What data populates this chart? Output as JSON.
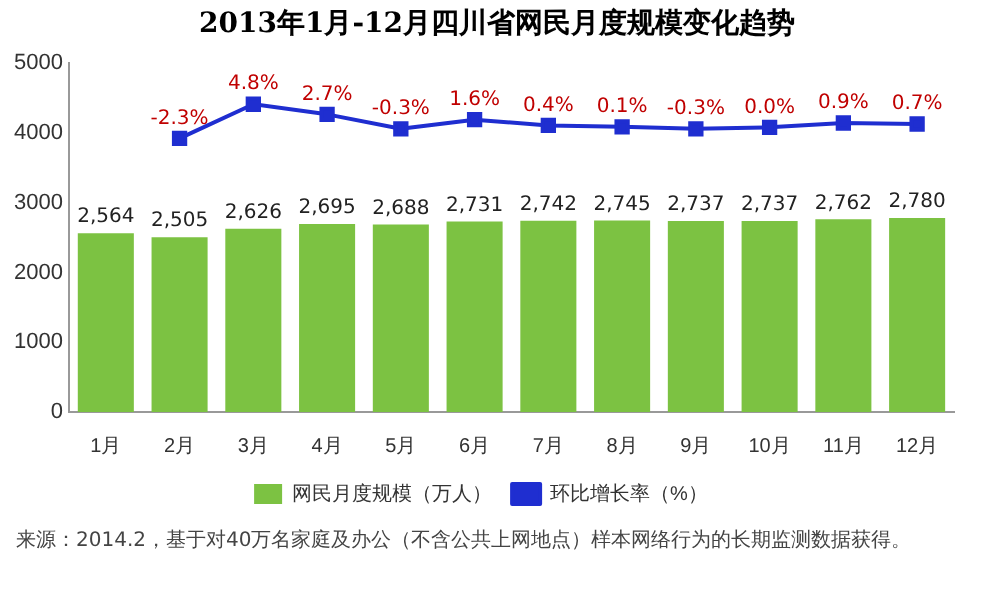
{
  "chart_data": {
    "type": "bar",
    "title": "2013年1月-12月四川省网民月度规模变化趋势",
    "categories": [
      "1月",
      "2月",
      "3月",
      "4月",
      "5月",
      "6月",
      "7月",
      "8月",
      "9月",
      "10月",
      "11月",
      "12月"
    ],
    "series": [
      {
        "name": "网民月度规模（万人）",
        "color": "#7cc242",
        "values": [
          2564,
          2505,
          2626,
          2695,
          2688,
          2731,
          2742,
          2745,
          2737,
          2737,
          2762,
          2780
        ],
        "value_labels": [
          "2,564",
          "2,505",
          "2,626",
          "2,695",
          "2,688",
          "2,731",
          "2,742",
          "2,745",
          "2,737",
          "2,737",
          "2,762",
          "2,780"
        ]
      },
      {
        "name": "环比增长率（%）",
        "type": "line",
        "axis": "y2",
        "color": "#1f2ed0",
        "marker": "square",
        "values": [
          null,
          -2.3,
          4.8,
          2.7,
          -0.3,
          1.6,
          0.4,
          0.1,
          -0.3,
          0.0,
          0.9,
          0.7
        ],
        "value_labels": [
          null,
          "-2.3%",
          "4.8%",
          "2.7%",
          "-0.3%",
          "1.6%",
          "0.4%",
          "0.1%",
          "-0.3%",
          "0.0%",
          "0.9%",
          "0.7%"
        ]
      }
    ],
    "ylim": [
      0,
      5000
    ],
    "yticks": [
      0,
      1000,
      2000,
      3000,
      4000,
      5000
    ],
    "grid": false,
    "legend": "bottom",
    "annotations": [
      "来源：2014.2，基于对40万名家庭及办公（不含公共上网地点）样本网络行为的长期监测数据获得。"
    ]
  }
}
